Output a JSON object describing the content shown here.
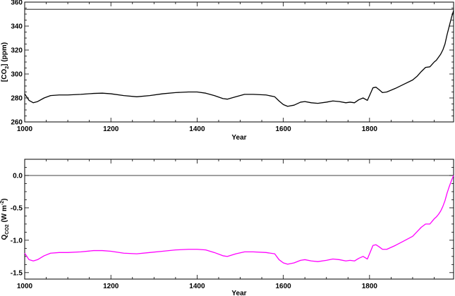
{
  "chart_data": [
    {
      "type": "line",
      "xlabel": "Year",
      "ylabel_parts": [
        "[CO",
        "2",
        "]  (ppm)"
      ],
      "xlim": [
        1000,
        1995
      ],
      "ylim": [
        260,
        360
      ],
      "xticks": [
        1000,
        1200,
        1400,
        1600,
        1800
      ],
      "yticks": [
        260,
        280,
        300,
        320,
        340,
        360
      ],
      "ytick_labels": [
        "260",
        "280",
        "300",
        "320",
        "340",
        "360"
      ],
      "reference_line": 354,
      "color": "#000000",
      "series": [
        {
          "x": [
            1000,
            1010,
            1020,
            1030,
            1045,
            1060,
            1080,
            1100,
            1130,
            1160,
            1180,
            1200,
            1230,
            1260,
            1290,
            1320,
            1350,
            1380,
            1400,
            1420,
            1440,
            1460,
            1470,
            1490,
            1510,
            1530,
            1560,
            1580,
            1590,
            1600,
            1610,
            1625,
            1640,
            1650,
            1665,
            1680,
            1700,
            1715,
            1730,
            1745,
            1755,
            1765,
            1775,
            1785,
            1795,
            1800,
            1808,
            1815,
            1822,
            1830,
            1840,
            1860,
            1880,
            1900,
            1910,
            1920,
            1930,
            1940,
            1945,
            1950,
            1955,
            1960,
            1965,
            1970,
            1975,
            1980,
            1985,
            1990,
            1995
          ],
          "y": [
            283.5,
            278,
            276,
            277,
            280,
            282,
            282.5,
            282.5,
            283,
            283.8,
            284,
            283.5,
            282,
            281,
            282,
            283.5,
            284.5,
            285,
            285,
            284,
            282,
            279.5,
            279,
            281,
            283,
            283,
            282.5,
            281,
            277.5,
            274.5,
            273,
            274,
            276.5,
            277,
            276,
            275.5,
            276.5,
            277.5,
            277,
            276,
            276.5,
            276,
            278.5,
            280,
            278,
            282,
            288.5,
            289,
            287,
            284.5,
            285,
            288,
            291.5,
            295,
            298,
            302,
            305.5,
            306,
            308,
            310,
            311.5,
            314,
            316.5,
            320,
            325,
            333,
            340,
            347,
            353
          ]
        }
      ]
    },
    {
      "type": "line",
      "xlabel": "Year",
      "ylabel_parts": [
        "Q",
        "CO2",
        "  (W m",
        "-2",
        ")"
      ],
      "xlim": [
        1000,
        1995
      ],
      "ylim": [
        -1.6,
        0.25
      ],
      "xticks": [
        1000,
        1200,
        1400,
        1600,
        1800
      ],
      "yticks": [
        -1.5,
        -1.0,
        -0.5,
        0.0
      ],
      "ytick_labels": [
        "-1.5",
        "-1.0",
        "-0.5",
        "0.0"
      ],
      "reference_line": 0.0,
      "color": "#ff00ff",
      "series": [
        {
          "x": [
            1000,
            1010,
            1020,
            1030,
            1045,
            1060,
            1080,
            1100,
            1130,
            1160,
            1180,
            1200,
            1230,
            1260,
            1290,
            1320,
            1350,
            1380,
            1400,
            1420,
            1440,
            1460,
            1470,
            1490,
            1510,
            1530,
            1560,
            1580,
            1590,
            1600,
            1610,
            1625,
            1640,
            1650,
            1665,
            1680,
            1700,
            1715,
            1730,
            1745,
            1755,
            1765,
            1775,
            1785,
            1795,
            1800,
            1808,
            1815,
            1822,
            1830,
            1840,
            1860,
            1880,
            1900,
            1910,
            1920,
            1930,
            1940,
            1945,
            1950,
            1955,
            1960,
            1965,
            1970,
            1975,
            1980,
            1985,
            1990,
            1995
          ],
          "y": [
            -1.2,
            -1.3,
            -1.32,
            -1.3,
            -1.24,
            -1.2,
            -1.19,
            -1.19,
            -1.18,
            -1.16,
            -1.16,
            -1.17,
            -1.2,
            -1.21,
            -1.19,
            -1.17,
            -1.15,
            -1.14,
            -1.14,
            -1.15,
            -1.19,
            -1.24,
            -1.25,
            -1.21,
            -1.18,
            -1.18,
            -1.19,
            -1.21,
            -1.3,
            -1.35,
            -1.37,
            -1.35,
            -1.31,
            -1.3,
            -1.32,
            -1.33,
            -1.31,
            -1.29,
            -1.3,
            -1.32,
            -1.31,
            -1.32,
            -1.28,
            -1.25,
            -1.29,
            -1.21,
            -1.08,
            -1.07,
            -1.1,
            -1.14,
            -1.14,
            -1.08,
            -1.01,
            -0.94,
            -0.87,
            -0.8,
            -0.75,
            -0.75,
            -0.71,
            -0.67,
            -0.64,
            -0.6,
            -0.55,
            -0.48,
            -0.39,
            -0.27,
            -0.17,
            -0.08,
            0.0
          ]
        }
      ]
    }
  ]
}
